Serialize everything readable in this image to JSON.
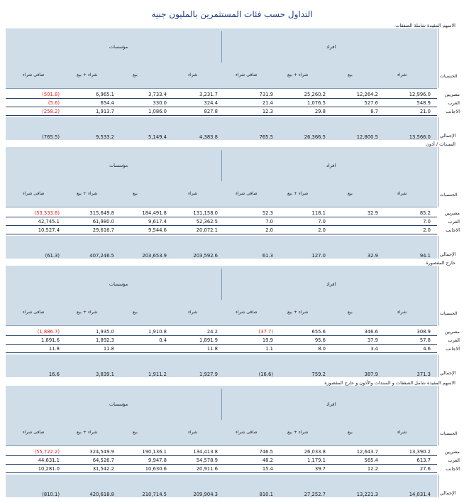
{
  "title": "التداول حسب فئات المستثمرين بالمليون جنيه",
  "groups": {
    "institutions": "مؤسسات",
    "individuals": "افراد"
  },
  "columns": {
    "nationality": "الجنسيات",
    "buy": "شراء",
    "sell": "بيع",
    "total": "شراء + بيع",
    "net": "صافى شراء"
  },
  "rows_labels": [
    "مصريين",
    "العرب",
    "الاجانب"
  ],
  "total_label": "الإجمالي",
  "sections": [
    {
      "label": "الاسهم المقيدة شاملة الصفقات",
      "rows": [
        {
          "ind": [
            "12,996.0",
            "12,264.2",
            "25,260.2",
            "731.9"
          ],
          "inst": [
            "3,231.7",
            "3,733.4",
            "6,965.1",
            "(501.8)"
          ]
        },
        {
          "ind": [
            "548.9",
            "527.6",
            "1,076.5",
            "21.4"
          ],
          "inst": [
            "324.4",
            "330.0",
            "654.4",
            "(5.6)"
          ]
        },
        {
          "ind": [
            "21.0",
            "8.7",
            "29.8",
            "12.3"
          ],
          "inst": [
            "827.8",
            "1,086.0",
            "1,913.7",
            "(258.2)"
          ]
        }
      ],
      "total": {
        "ind": [
          "13,566.0",
          "12,800.5",
          "26,366.5",
          "765.5"
        ],
        "inst": [
          "4,383.8",
          "5,149.4",
          "9,533.2",
          "(765.5)"
        ]
      }
    },
    {
      "label": "السندات / أذون",
      "rows": [
        {
          "ind": [
            "85.2",
            "32.9",
            "118.1",
            "52.3"
          ],
          "inst": [
            "131,158.0",
            "184,491.8",
            "315,649.8",
            "(53,333.8)"
          ]
        },
        {
          "ind": [
            "7.0",
            "",
            "7.0",
            "7.0"
          ],
          "inst": [
            "52,362.5",
            "9,617.4",
            "61,980.0",
            "42,745.1"
          ]
        },
        {
          "ind": [
            "2.0",
            "",
            "2.0",
            "2.0"
          ],
          "inst": [
            "20,072.1",
            "9,544.6",
            "29,616.7",
            "10,527.4"
          ]
        }
      ],
      "total": {
        "ind": [
          "94.1",
          "32.9",
          "127.0",
          "61.3"
        ],
        "inst": [
          "203,592.6",
          "203,653.9",
          "407,246.5",
          "(61.3)"
        ]
      }
    },
    {
      "label": "خارج المقصورة",
      "rows": [
        {
          "ind": [
            "308.9",
            "346.6",
            "655.6",
            "(37.7)"
          ],
          "inst": [
            "24.2",
            "1,910.8",
            "1,935.0",
            "(1,886.7)"
          ]
        },
        {
          "ind": [
            "57.8",
            "37.9",
            "95.6",
            "19.9"
          ],
          "inst": [
            "1,891.9",
            "0.4",
            "1,892.3",
            "1,891.6"
          ]
        },
        {
          "ind": [
            "4.6",
            "3.4",
            "8.0",
            "1.1"
          ],
          "inst": [
            "11.8",
            "",
            "11.8",
            "11.8"
          ]
        }
      ],
      "total": {
        "ind": [
          "371.3",
          "387.9",
          "759.2",
          "(16.6)"
        ],
        "inst": [
          "1,927.9",
          "1,911.2",
          "3,839.1",
          "16.6"
        ]
      }
    },
    {
      "label": "الاسهم المقيدة شامل الصفقات و السندات والأذون و خارج المقصورة",
      "rows": [
        {
          "ind": [
            "13,390.2",
            "12,643.7",
            "26,033.8",
            "746.5"
          ],
          "inst": [
            "134,413.8",
            "190,136.1",
            "324,549.9",
            "(55,722.2)"
          ]
        },
        {
          "ind": [
            "613.7",
            "565.4",
            "1,179.1",
            "48.2"
          ],
          "inst": [
            "54,578.9",
            "9,947.8",
            "64,526.7",
            "44,631.1"
          ]
        },
        {
          "ind": [
            "27.6",
            "12.2",
            "39.7",
            "15.4"
          ],
          "inst": [
            "20,911.6",
            "10,630.6",
            "31,542.2",
            "10,281.0"
          ]
        }
      ],
      "total": {
        "ind": [
          "14,031.4",
          "13,221.3",
          "27,252.7",
          "810.1"
        ],
        "inst": [
          "209,904.3",
          "210,714.5",
          "420,618.8",
          "(810.1)"
        ]
      }
    }
  ]
}
